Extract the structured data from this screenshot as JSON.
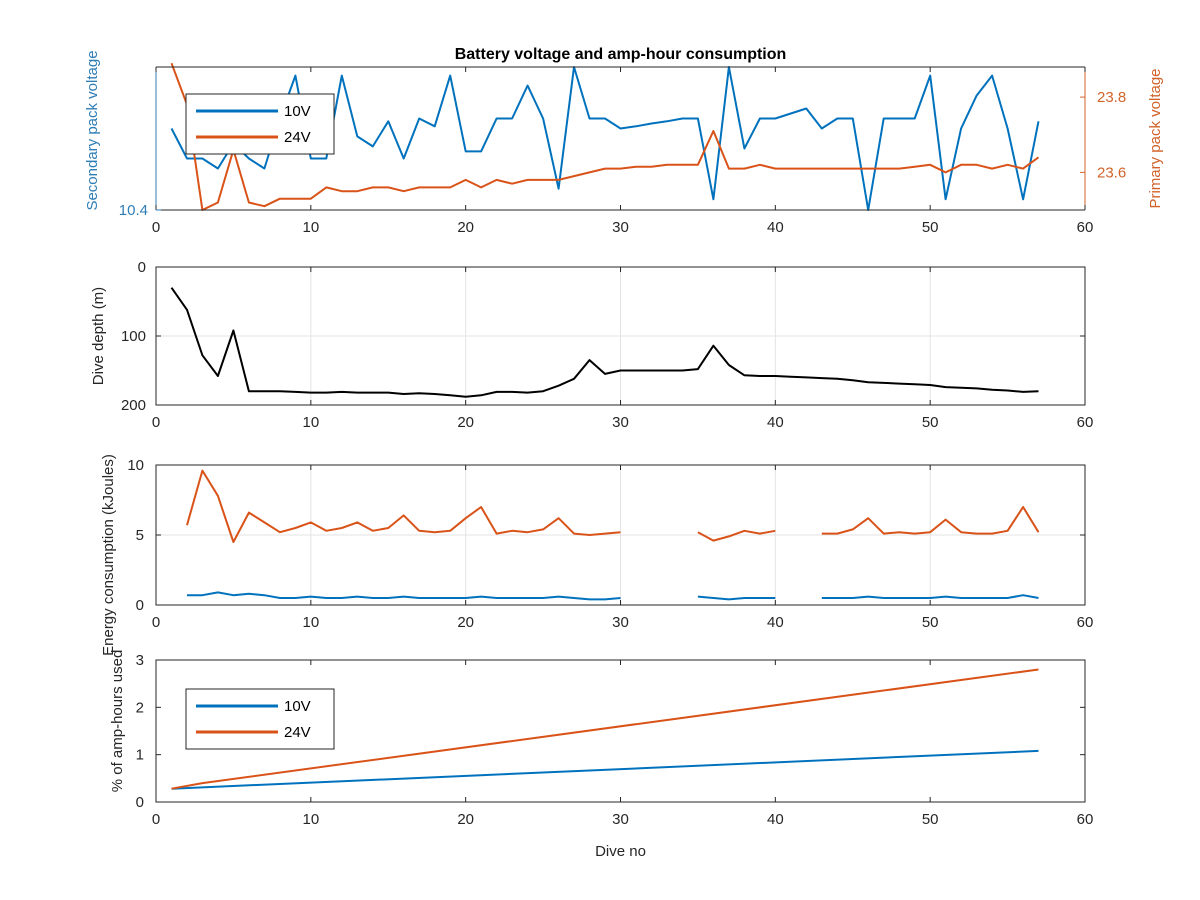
{
  "chart_data": [
    {
      "type": "line",
      "title": "Battery voltage and amp-hour consumption",
      "xlabel": "",
      "xlim": [
        0,
        60
      ],
      "x_ticks": [
        0,
        10,
        20,
        30,
        40,
        50,
        60
      ],
      "grid": false,
      "legend": {
        "position": "top-left",
        "entries": [
          "10V",
          "24V"
        ]
      },
      "y_left": {
        "label": "Secondary pack voltage",
        "color": "#2E7DB5",
        "ticks": [
          "10.4"
        ],
        "ylim": [
          10.4,
          10.6
        ]
      },
      "y_right": {
        "label": "Primary pack voltage",
        "color": "#D1632A",
        "ticks": [
          23.6,
          23.8
        ],
        "ylim": [
          23.5,
          23.88
        ]
      },
      "series": [
        {
          "name": "10V",
          "axis": "left",
          "color": "#0072BD",
          "x": [
            1,
            2,
            3,
            4,
            5,
            6,
            7,
            8,
            9,
            10,
            11,
            12,
            13,
            14,
            15,
            16,
            17,
            18,
            19,
            20,
            21,
            22,
            23,
            24,
            25,
            26,
            27,
            28,
            29,
            30,
            31,
            32,
            33,
            34,
            35,
            36,
            37,
            38,
            39,
            40,
            41,
            42,
            43,
            44,
            45,
            46,
            47,
            48,
            49,
            50,
            51,
            52,
            53,
            54,
            55,
            56,
            57
          ],
          "y": [
            10.514,
            10.472,
            10.472,
            10.458,
            10.493,
            10.472,
            10.458,
            10.528,
            10.588,
            10.472,
            10.472,
            10.588,
            10.503,
            10.489,
            10.524,
            10.472,
            10.528,
            10.517,
            10.588,
            10.482,
            10.482,
            10.528,
            10.528,
            10.574,
            10.528,
            10.43,
            10.6,
            10.528,
            10.528,
            10.514,
            10.517,
            10.521,
            10.524,
            10.528,
            10.528,
            10.415,
            10.6,
            10.486,
            10.528,
            10.528,
            10.535,
            10.542,
            10.514,
            10.528,
            10.528,
            10.4,
            10.528,
            10.528,
            10.528,
            10.588,
            10.415,
            10.514,
            10.56,
            10.588,
            10.514,
            10.415,
            10.524
          ]
        },
        {
          "name": "24V",
          "axis": "right",
          "color": "#D95319",
          "x": [
            1,
            2,
            3,
            4,
            5,
            6,
            7,
            8,
            9,
            10,
            11,
            12,
            13,
            14,
            15,
            16,
            17,
            18,
            19,
            20,
            21,
            22,
            23,
            24,
            25,
            26,
            27,
            28,
            29,
            30,
            31,
            32,
            33,
            34,
            35,
            36,
            37,
            38,
            39,
            40,
            41,
            42,
            43,
            44,
            45,
            46,
            47,
            48,
            49,
            50,
            51,
            52,
            53,
            54,
            55,
            56,
            57
          ],
          "y": [
            23.89,
            23.78,
            23.5,
            23.52,
            23.66,
            23.52,
            23.51,
            23.53,
            23.53,
            23.53,
            23.56,
            23.55,
            23.55,
            23.56,
            23.56,
            23.55,
            23.56,
            23.56,
            23.56,
            23.58,
            23.56,
            23.58,
            23.57,
            23.58,
            23.58,
            23.58,
            23.59,
            23.6,
            23.61,
            23.61,
            23.615,
            23.615,
            23.62,
            23.62,
            23.62,
            23.71,
            23.61,
            23.61,
            23.62,
            23.61,
            23.61,
            23.61,
            23.61,
            23.61,
            23.61,
            23.61,
            23.61,
            23.61,
            23.615,
            23.62,
            23.6,
            23.62,
            23.62,
            23.61,
            23.62,
            23.61,
            23.64
          ]
        }
      ]
    },
    {
      "type": "line",
      "title": "",
      "xlabel": "",
      "ylabel": "Dive depth (m)",
      "xlim": [
        0,
        60
      ],
      "ylim": [
        0,
        200
      ],
      "y_reversed": true,
      "x_ticks": [
        0,
        10,
        20,
        30,
        40,
        50,
        60
      ],
      "y_ticks": [
        0,
        100,
        200
      ],
      "grid": true,
      "series": [
        {
          "color": "#000000",
          "x": [
            1,
            2,
            3,
            4,
            5,
            6,
            7,
            8,
            9,
            10,
            11,
            12,
            13,
            14,
            15,
            16,
            17,
            18,
            19,
            20,
            21,
            22,
            23,
            24,
            25,
            26,
            27,
            28,
            29,
            30,
            31,
            32,
            33,
            34,
            35,
            36,
            37,
            38,
            39,
            40,
            41,
            42,
            43,
            44,
            45,
            46,
            47,
            48,
            49,
            50,
            51,
            52,
            53,
            54,
            55,
            56,
            57
          ],
          "y": [
            30,
            62,
            128,
            158,
            92,
            180,
            180,
            180,
            181,
            182,
            182,
            181,
            182,
            182,
            182,
            184,
            183,
            184,
            186,
            188,
            186,
            181,
            181,
            182,
            180,
            172,
            162,
            135,
            155,
            150,
            150,
            150,
            150,
            150,
            148,
            114,
            142,
            157,
            158,
            158,
            159,
            160,
            161,
            162,
            164,
            167,
            168,
            169,
            170,
            171,
            174,
            175,
            176,
            178,
            179,
            181,
            180
          ]
        }
      ]
    },
    {
      "type": "line",
      "title": "",
      "xlabel": "",
      "ylabel": "Energy consumption (kJoules)",
      "xlim": [
        0,
        60
      ],
      "ylim": [
        0,
        10
      ],
      "x_ticks": [
        0,
        10,
        20,
        30,
        40,
        50,
        60
      ],
      "y_ticks": [
        0,
        5,
        10
      ],
      "grid": true,
      "series": [
        {
          "color": "#D95319",
          "segments": [
            {
              "x": [
                2,
                3,
                4,
                5,
                6,
                7,
                8,
                9,
                10,
                11,
                12,
                13,
                14,
                15,
                16,
                17,
                18,
                19,
                20,
                21,
                22,
                23,
                24,
                25,
                26,
                27,
                28,
                29,
                30
              ],
              "y": [
                5.7,
                9.6,
                7.8,
                4.5,
                6.6,
                5.9,
                5.2,
                5.5,
                5.9,
                5.3,
                5.5,
                5.9,
                5.3,
                5.5,
                6.4,
                5.3,
                5.2,
                5.3,
                6.2,
                7.0,
                5.1,
                5.3,
                5.2,
                5.4,
                6.2,
                5.1,
                5.0,
                5.1,
                5.2
              ]
            },
            {
              "x": [
                35,
                36,
                37,
                38,
                39,
                40
              ],
              "y": [
                5.2,
                4.6,
                4.9,
                5.3,
                5.1,
                5.3
              ]
            },
            {
              "x": [
                43,
                44,
                45,
                46,
                47,
                48,
                49,
                50,
                51,
                52,
                53,
                54,
                55,
                56,
                57
              ],
              "y": [
                5.1,
                5.1,
                5.4,
                6.2,
                5.1,
                5.2,
                5.1,
                5.2,
                6.1,
                5.2,
                5.1,
                5.1,
                5.3,
                7.0,
                5.2
              ]
            }
          ]
        },
        {
          "color": "#0072BD",
          "segments": [
            {
              "x": [
                2,
                3,
                4,
                5,
                6,
                7,
                8,
                9,
                10,
                11,
                12,
                13,
                14,
                15,
                16,
                17,
                18,
                19,
                20,
                21,
                22,
                23,
                24,
                25,
                26,
                27,
                28,
                29,
                30
              ],
              "y": [
                0.7,
                0.7,
                0.9,
                0.7,
                0.8,
                0.7,
                0.5,
                0.5,
                0.6,
                0.5,
                0.5,
                0.6,
                0.5,
                0.5,
                0.6,
                0.5,
                0.5,
                0.5,
                0.5,
                0.6,
                0.5,
                0.5,
                0.5,
                0.5,
                0.6,
                0.5,
                0.4,
                0.4,
                0.5
              ]
            },
            {
              "x": [
                35,
                36,
                37,
                38,
                39,
                40
              ],
              "y": [
                0.6,
                0.5,
                0.4,
                0.5,
                0.5,
                0.5
              ]
            },
            {
              "x": [
                43,
                44,
                45,
                46,
                47,
                48,
                49,
                50,
                51,
                52,
                53,
                54,
                55,
                56,
                57
              ],
              "y": [
                0.5,
                0.5,
                0.5,
                0.6,
                0.5,
                0.5,
                0.5,
                0.5,
                0.6,
                0.5,
                0.5,
                0.5,
                0.5,
                0.7,
                0.5
              ]
            }
          ]
        }
      ]
    },
    {
      "type": "line",
      "title": "",
      "xlabel": "Dive no",
      "ylabel": "% of amp-hours used",
      "xlim": [
        0,
        60
      ],
      "ylim": [
        0,
        3
      ],
      "x_ticks": [
        0,
        10,
        20,
        30,
        40,
        50,
        60
      ],
      "y_ticks": [
        0,
        1,
        2,
        3
      ],
      "grid": false,
      "legend": {
        "position": "top-left",
        "entries": [
          "10V",
          "24V"
        ]
      },
      "series": [
        {
          "name": "10V",
          "color": "#0072BD",
          "x": [
            1,
            57
          ],
          "y": [
            0.28,
            1.08
          ]
        },
        {
          "name": "24V",
          "color": "#D95319",
          "x": [
            1,
            3,
            57
          ],
          "y": [
            0.28,
            0.4,
            2.8
          ]
        }
      ]
    }
  ]
}
